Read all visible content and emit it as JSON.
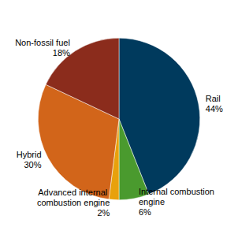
{
  "chart_data": {
    "type": "pie",
    "categories": [
      "Rail",
      "Internal combustion engine",
      "Advanced internal combustion engine",
      "Hybrid",
      "Non-fossil fuel"
    ],
    "values": [
      44,
      6,
      2,
      30,
      18
    ],
    "value_labels": [
      "44%",
      "6%",
      "2%",
      "30%",
      "18%"
    ],
    "colors": [
      "#003a5d",
      "#4a9a2e",
      "#e8a10c",
      "#d2651a",
      "#8b2c1c"
    ],
    "data_labels": true
  }
}
